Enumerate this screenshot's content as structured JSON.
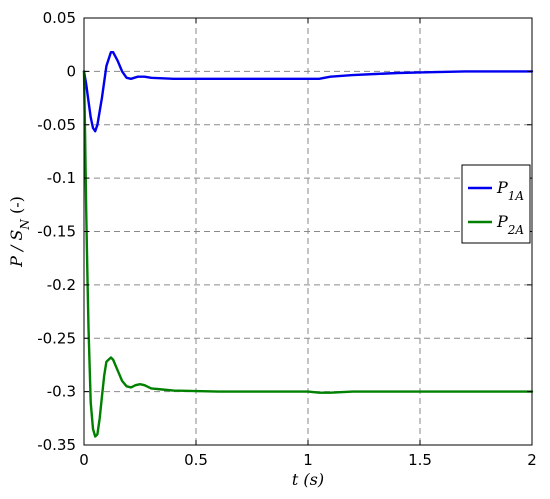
{
  "chart_data": {
    "type": "line",
    "title": "",
    "xlabel": "t (s)",
    "ylabel": "P / S_N (-)",
    "xlim": [
      0,
      2
    ],
    "ylim": [
      -0.35,
      0.05
    ],
    "xticks": [
      0,
      0.5,
      1,
      1.5,
      2
    ],
    "xtick_labels": [
      "0",
      "0.5",
      "1",
      "1.5",
      "2"
    ],
    "yticks": [
      0.05,
      0,
      -0.05,
      -0.1,
      -0.15,
      -0.2,
      -0.25,
      -0.3,
      -0.35
    ],
    "ytick_labels": [
      "0.05",
      "0",
      "-0.05",
      "-0.1",
      "-0.15",
      "-0.2",
      "-0.25",
      "-0.3",
      "-0.35"
    ],
    "grid": true,
    "legend_position": "right",
    "series": [
      {
        "name": "P_1A",
        "legend_main": "P",
        "legend_sub": "1A",
        "color": "#0000ee",
        "x": [
          0,
          0.01,
          0.02,
          0.03,
          0.04,
          0.05,
          0.06,
          0.08,
          0.1,
          0.12,
          0.13,
          0.15,
          0.17,
          0.19,
          0.21,
          0.24,
          0.27,
          0.3,
          0.4,
          0.6,
          0.8,
          1.0,
          1.05,
          1.1,
          1.2,
          1.3,
          1.4,
          1.5,
          1.6,
          1.7,
          1.8,
          2.0
        ],
        "y": [
          0,
          -0.012,
          -0.028,
          -0.043,
          -0.053,
          -0.056,
          -0.05,
          -0.025,
          0.005,
          0.018,
          0.018,
          0.01,
          0.0,
          -0.006,
          -0.007,
          -0.005,
          -0.005,
          -0.006,
          -0.007,
          -0.007,
          -0.007,
          -0.007,
          -0.007,
          -0.005,
          -0.0035,
          -0.0025,
          -0.0015,
          -0.001,
          -0.0005,
          0,
          0,
          0
        ]
      },
      {
        "name": "P_2A",
        "legend_main": "P",
        "legend_sub": "2A",
        "color": "#008000",
        "x": [
          0,
          0.005,
          0.01,
          0.015,
          0.02,
          0.03,
          0.04,
          0.05,
          0.06,
          0.07,
          0.08,
          0.09,
          0.1,
          0.12,
          0.13,
          0.15,
          0.17,
          0.19,
          0.21,
          0.23,
          0.25,
          0.27,
          0.3,
          0.35,
          0.4,
          0.6,
          0.8,
          1.0,
          1.05,
          1.1,
          1.2,
          1.3,
          1.4,
          1.5,
          1.6,
          1.8,
          2.0
        ],
        "y": [
          0,
          -0.06,
          -0.13,
          -0.19,
          -0.24,
          -0.31,
          -0.335,
          -0.342,
          -0.34,
          -0.325,
          -0.305,
          -0.285,
          -0.272,
          -0.268,
          -0.27,
          -0.28,
          -0.29,
          -0.295,
          -0.296,
          -0.294,
          -0.293,
          -0.294,
          -0.297,
          -0.298,
          -0.299,
          -0.3,
          -0.3,
          -0.3,
          -0.301,
          -0.301,
          -0.3,
          -0.3,
          -0.3,
          -0.3,
          -0.3,
          -0.3,
          -0.3
        ]
      }
    ]
  }
}
